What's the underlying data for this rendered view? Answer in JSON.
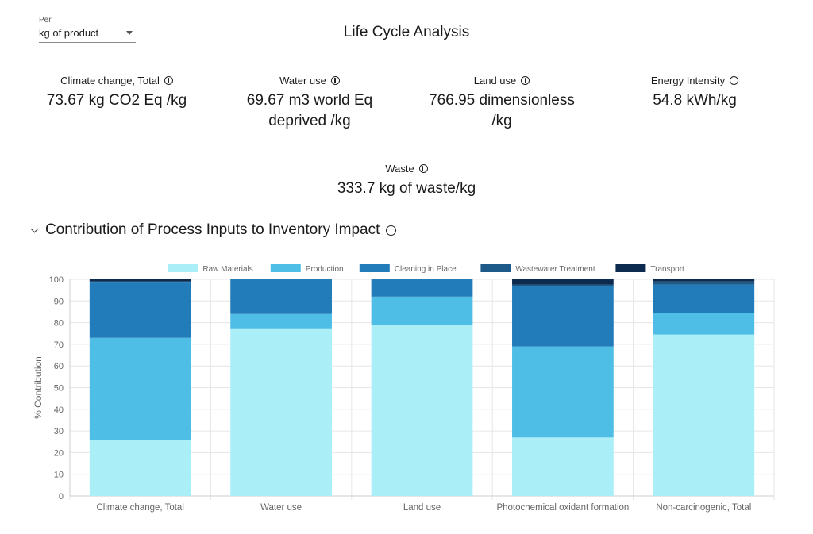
{
  "header": {
    "per_label": "Per",
    "per_value": "kg of product",
    "title": "Life Cycle Analysis"
  },
  "metrics": [
    {
      "label": "Climate change, Total",
      "value_line1": "73.67 kg CO2 Eq /kg",
      "value_line2": ""
    },
    {
      "label": "Water use",
      "value_line1": "69.67 m3 world Eq",
      "value_line2": "deprived /kg"
    },
    {
      "label": "Land use",
      "value_line1": "766.95 dimensionless",
      "value_line2": "/kg"
    },
    {
      "label": "Energy Intensity",
      "value_line1": "54.8 kWh/kg",
      "value_line2": ""
    },
    {
      "label": "Waste",
      "value_line1": "333.7 kg of waste/kg",
      "value_line2": ""
    }
  ],
  "section": {
    "title": "Contribution of Process Inputs to Inventory Impact"
  },
  "chart_data": {
    "type": "bar",
    "stacked": true,
    "title": "",
    "xlabel": "",
    "ylabel": "% Contribution",
    "ylim": [
      0,
      100
    ],
    "yticks": [
      0,
      10,
      20,
      30,
      40,
      50,
      60,
      70,
      80,
      90,
      100
    ],
    "legend_position": "top",
    "categories": [
      "Climate change, Total",
      "Water use",
      "Land use",
      "Photochemical oxidant formation",
      "Non-carcinogenic, Total"
    ],
    "series": [
      {
        "name": "Raw Materials",
        "color": "#aaeff7",
        "values": [
          26,
          77,
          79,
          27,
          74.5
        ]
      },
      {
        "name": "Production",
        "color": "#4ebee6",
        "values": [
          47,
          7,
          13,
          42,
          10
        ]
      },
      {
        "name": "Cleaning in Place",
        "color": "#217cb9",
        "values": [
          25.5,
          16,
          8,
          28,
          13
        ]
      },
      {
        "name": "Wastewater Treatment",
        "color": "#1d5a8a",
        "values": [
          0.5,
          0,
          0,
          0.5,
          1.5
        ]
      },
      {
        "name": "Transport",
        "color": "#0d2b4e",
        "values": [
          1,
          0,
          0,
          2.5,
          1
        ]
      }
    ]
  }
}
